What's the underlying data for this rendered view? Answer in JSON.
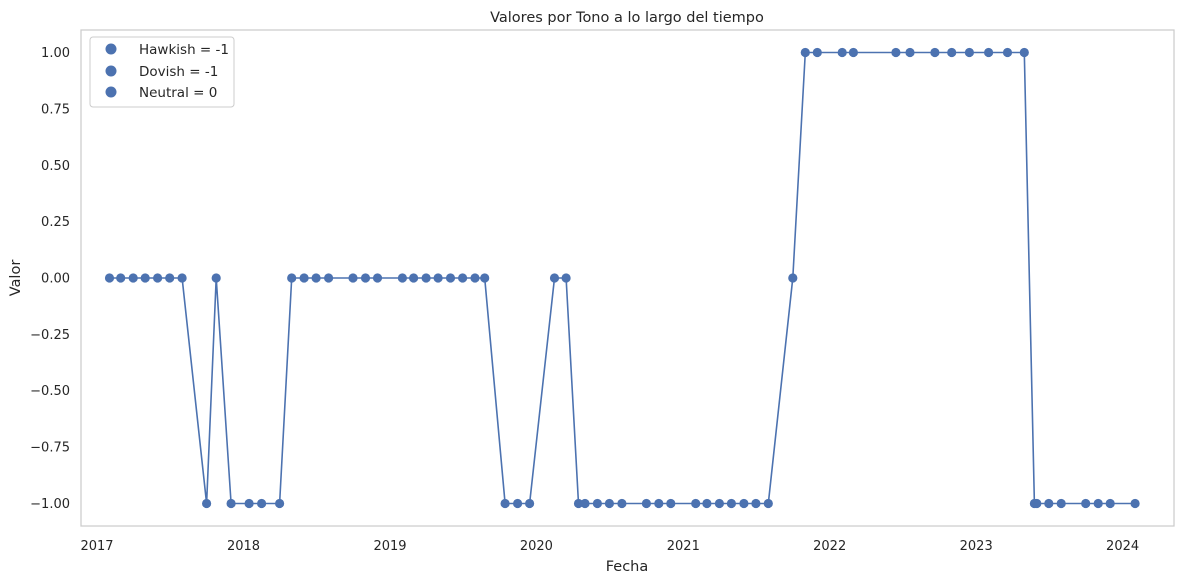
{
  "chart_data": {
    "type": "line",
    "title": "Valores por Tono a lo largo del tiempo",
    "xlabel": "Fecha",
    "ylabel": "Valor",
    "x_axis": "date",
    "xlim": [
      "2016-11-22",
      "2024-05-08"
    ],
    "ylim": [
      -1.1,
      1.1
    ],
    "x_ticks": [
      {
        "date": "2017-01-01",
        "label": "2017"
      },
      {
        "date": "2018-01-01",
        "label": "2018"
      },
      {
        "date": "2019-01-01",
        "label": "2019"
      },
      {
        "date": "2020-01-01",
        "label": "2020"
      },
      {
        "date": "2021-01-01",
        "label": "2021"
      },
      {
        "date": "2022-01-01",
        "label": "2022"
      },
      {
        "date": "2023-01-01",
        "label": "2023"
      },
      {
        "date": "2024-01-01",
        "label": "2024"
      }
    ],
    "y_ticks": [
      {
        "value": 1.0,
        "label": "1.00"
      },
      {
        "value": 0.75,
        "label": "0.75"
      },
      {
        "value": 0.5,
        "label": "0.50"
      },
      {
        "value": 0.25,
        "label": "0.25"
      },
      {
        "value": 0.0,
        "label": "0.00"
      },
      {
        "value": -0.25,
        "label": "−0.25"
      },
      {
        "value": -0.5,
        "label": "−0.50"
      },
      {
        "value": -0.75,
        "label": "−0.75"
      },
      {
        "value": -1.0,
        "label": "−1.00"
      }
    ],
    "grid": false,
    "line_color": "#4c72b0",
    "legend_position": "upper-left",
    "legend": [
      {
        "label": "Hawkish = -1",
        "color": "#4c72b0"
      },
      {
        "label": "Dovish = -1",
        "color": "#4c72b0"
      },
      {
        "label": "Neutral = 0",
        "color": "#4c72b0"
      }
    ],
    "series": [
      {
        "points": [
          {
            "x": "2017-02-01",
            "y": 0
          },
          {
            "x": "2017-03-01",
            "y": 0
          },
          {
            "x": "2017-04-01",
            "y": 0
          },
          {
            "x": "2017-05-01",
            "y": 0
          },
          {
            "x": "2017-06-01",
            "y": 0
          },
          {
            "x": "2017-07-01",
            "y": 0
          },
          {
            "x": "2017-08-01",
            "y": 0
          },
          {
            "x": "2017-10-01",
            "y": -1
          },
          {
            "x": "2017-10-25",
            "y": 0
          },
          {
            "x": "2017-12-01",
            "y": -1
          },
          {
            "x": "2018-01-15",
            "y": -1
          },
          {
            "x": "2018-02-15",
            "y": -1
          },
          {
            "x": "2018-04-01",
            "y": -1
          },
          {
            "x": "2018-05-01",
            "y": 0
          },
          {
            "x": "2018-06-01",
            "y": 0
          },
          {
            "x": "2018-07-01",
            "y": 0
          },
          {
            "x": "2018-08-01",
            "y": 0
          },
          {
            "x": "2018-10-01",
            "y": 0
          },
          {
            "x": "2018-11-01",
            "y": 0
          },
          {
            "x": "2018-12-01",
            "y": 0
          },
          {
            "x": "2019-02-01",
            "y": 0
          },
          {
            "x": "2019-03-01",
            "y": 0
          },
          {
            "x": "2019-04-01",
            "y": 0
          },
          {
            "x": "2019-05-01",
            "y": 0
          },
          {
            "x": "2019-06-01",
            "y": 0
          },
          {
            "x": "2019-07-01",
            "y": 0
          },
          {
            "x": "2019-08-01",
            "y": 0
          },
          {
            "x": "2019-08-25",
            "y": 0
          },
          {
            "x": "2019-10-15",
            "y": -1
          },
          {
            "x": "2019-11-15",
            "y": -1
          },
          {
            "x": "2019-12-15",
            "y": -1
          },
          {
            "x": "2020-02-15",
            "y": 0
          },
          {
            "x": "2020-03-15",
            "y": 0
          },
          {
            "x": "2020-04-15",
            "y": -1
          },
          {
            "x": "2020-05-01",
            "y": -1
          },
          {
            "x": "2020-06-01",
            "y": -1
          },
          {
            "x": "2020-07-01",
            "y": -1
          },
          {
            "x": "2020-08-01",
            "y": -1
          },
          {
            "x": "2020-10-01",
            "y": -1
          },
          {
            "x": "2020-11-01",
            "y": -1
          },
          {
            "x": "2020-12-01",
            "y": -1
          },
          {
            "x": "2021-02-01",
            "y": -1
          },
          {
            "x": "2021-03-01",
            "y": -1
          },
          {
            "x": "2021-04-01",
            "y": -1
          },
          {
            "x": "2021-05-01",
            "y": -1
          },
          {
            "x": "2021-06-01",
            "y": -1
          },
          {
            "x": "2021-07-01",
            "y": -1
          },
          {
            "x": "2021-08-01",
            "y": -1
          },
          {
            "x": "2021-10-01",
            "y": 0
          },
          {
            "x": "2021-11-01",
            "y": 1
          },
          {
            "x": "2021-12-01",
            "y": 1
          },
          {
            "x": "2022-02-01",
            "y": 1
          },
          {
            "x": "2022-03-01",
            "y": 1
          },
          {
            "x": "2022-06-15",
            "y": 1
          },
          {
            "x": "2022-07-20",
            "y": 1
          },
          {
            "x": "2022-09-20",
            "y": 1
          },
          {
            "x": "2022-11-01",
            "y": 1
          },
          {
            "x": "2022-12-15",
            "y": 1
          },
          {
            "x": "2023-02-01",
            "y": 1
          },
          {
            "x": "2023-03-20",
            "y": 1
          },
          {
            "x": "2023-05-01",
            "y": 1
          },
          {
            "x": "2023-05-26",
            "y": -1
          },
          {
            "x": "2023-06-01",
            "y": -1
          },
          {
            "x": "2023-07-01",
            "y": -1
          },
          {
            "x": "2023-08-01",
            "y": -1
          },
          {
            "x": "2023-10-01",
            "y": -1
          },
          {
            "x": "2023-11-01",
            "y": -1
          },
          {
            "x": "2023-12-01",
            "y": -1
          },
          {
            "x": "2024-02-01",
            "y": -1
          }
        ]
      }
    ]
  }
}
